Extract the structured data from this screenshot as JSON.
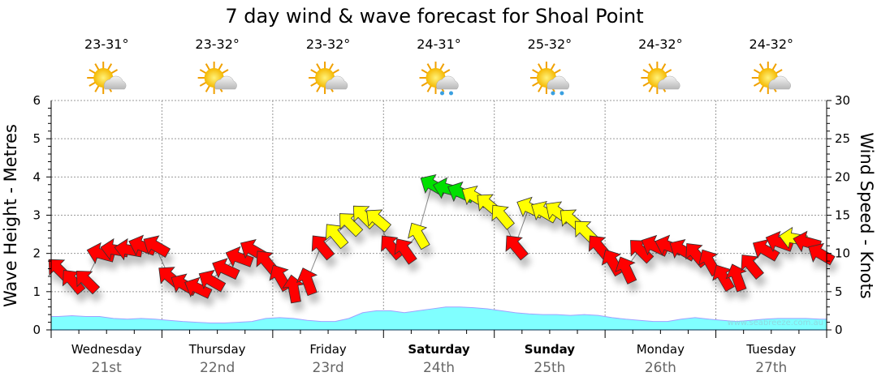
{
  "chart_data": {
    "type": "line",
    "title": "7 day wind & wave forecast for Shoal Point",
    "ylabel_left": "Wave Height - Metres",
    "ylabel_right": "Wind Speed - Knots",
    "ylim_left": [
      0,
      6
    ],
    "ylim_right": [
      0,
      30
    ],
    "yticks_left": [
      "0",
      "1",
      "2",
      "3",
      "4",
      "5",
      "6"
    ],
    "yticks_right": [
      "0",
      "5",
      "10",
      "15",
      "20",
      "25",
      "30"
    ],
    "grid": true,
    "watermark": "www.seabreeze.com.au",
    "days": [
      {
        "name": "Wednesday",
        "date": "21st",
        "temp": "23-31°",
        "icon": "sun-cloud-icon",
        "bold": false
      },
      {
        "name": "Thursday",
        "date": "22nd",
        "temp": "23-32°",
        "icon": "sun-cloud-icon",
        "bold": false
      },
      {
        "name": "Friday",
        "date": "23rd",
        "temp": "23-32°",
        "icon": "sun-cloud-icon",
        "bold": false
      },
      {
        "name": "Saturday",
        "date": "24th",
        "temp": "24-31°",
        "icon": "sun-cloud-rain-icon",
        "bold": true
      },
      {
        "name": "Sunday",
        "date": "25th",
        "temp": "25-32°",
        "icon": "sun-cloud-rain-icon",
        "bold": true
      },
      {
        "name": "Monday",
        "date": "26th",
        "temp": "24-32°",
        "icon": "sun-cloud-icon",
        "bold": false
      },
      {
        "name": "Tuesday",
        "date": "27th",
        "temp": "24-32°",
        "icon": "sun-cloud-icon",
        "bold": false
      }
    ],
    "points_per_day": 8,
    "wind_speed_knots": [
      8,
      6.5,
      6.5,
      10,
      10.5,
      10.5,
      11,
      11,
      7,
      6,
      5.5,
      6.5,
      8,
      9.5,
      10.5,
      9,
      7,
      5.5,
      6.5,
      11,
      12.5,
      14,
      15,
      14.5,
      11,
      10.5,
      12.5,
      19,
      18.5,
      18,
      17.5,
      16.5,
      15,
      11,
      16,
      15.5,
      15.5,
      14.5,
      13,
      11,
      9,
      8,
      10.5,
      11,
      11,
      10.5,
      10,
      9,
      7,
      7,
      8.5,
      10.5,
      11.5,
      12,
      11.5,
      10
    ],
    "wind_arrow_bearing_deg": [
      315,
      320,
      315,
      285,
      280,
      280,
      290,
      300,
      310,
      300,
      295,
      300,
      295,
      290,
      300,
      320,
      330,
      350,
      340,
      320,
      320,
      315,
      315,
      310,
      320,
      325,
      330,
      300,
      285,
      295,
      300,
      310,
      320,
      320,
      295,
      300,
      305,
      310,
      315,
      320,
      330,
      335,
      315,
      295,
      290,
      300,
      320,
      330,
      330,
      340,
      320,
      300,
      290,
      280,
      285,
      300
    ],
    "wave_height_m": [
      0.35,
      0.37,
      0.35,
      0.35,
      0.3,
      0.28,
      0.3,
      0.28,
      0.25,
      0.22,
      0.2,
      0.18,
      0.18,
      0.2,
      0.22,
      0.3,
      0.32,
      0.3,
      0.25,
      0.22,
      0.22,
      0.3,
      0.45,
      0.5,
      0.5,
      0.45,
      0.5,
      0.55,
      0.6,
      0.6,
      0.58,
      0.55,
      0.5,
      0.45,
      0.42,
      0.4,
      0.4,
      0.38,
      0.4,
      0.38,
      0.32,
      0.28,
      0.25,
      0.22,
      0.22,
      0.28,
      0.32,
      0.28,
      0.25,
      0.22,
      0.25,
      0.28,
      0.3,
      0.3,
      0.3,
      0.28
    ],
    "wind_color_thresholds_knots": {
      "yellow_from": 12,
      "green_from": 18
    },
    "colors": {
      "red": "#ff0000",
      "yellow": "#ffff00",
      "green": "#00e000",
      "wave_fill": "#80ffff",
      "wave_line": "#a0a0ff"
    }
  }
}
